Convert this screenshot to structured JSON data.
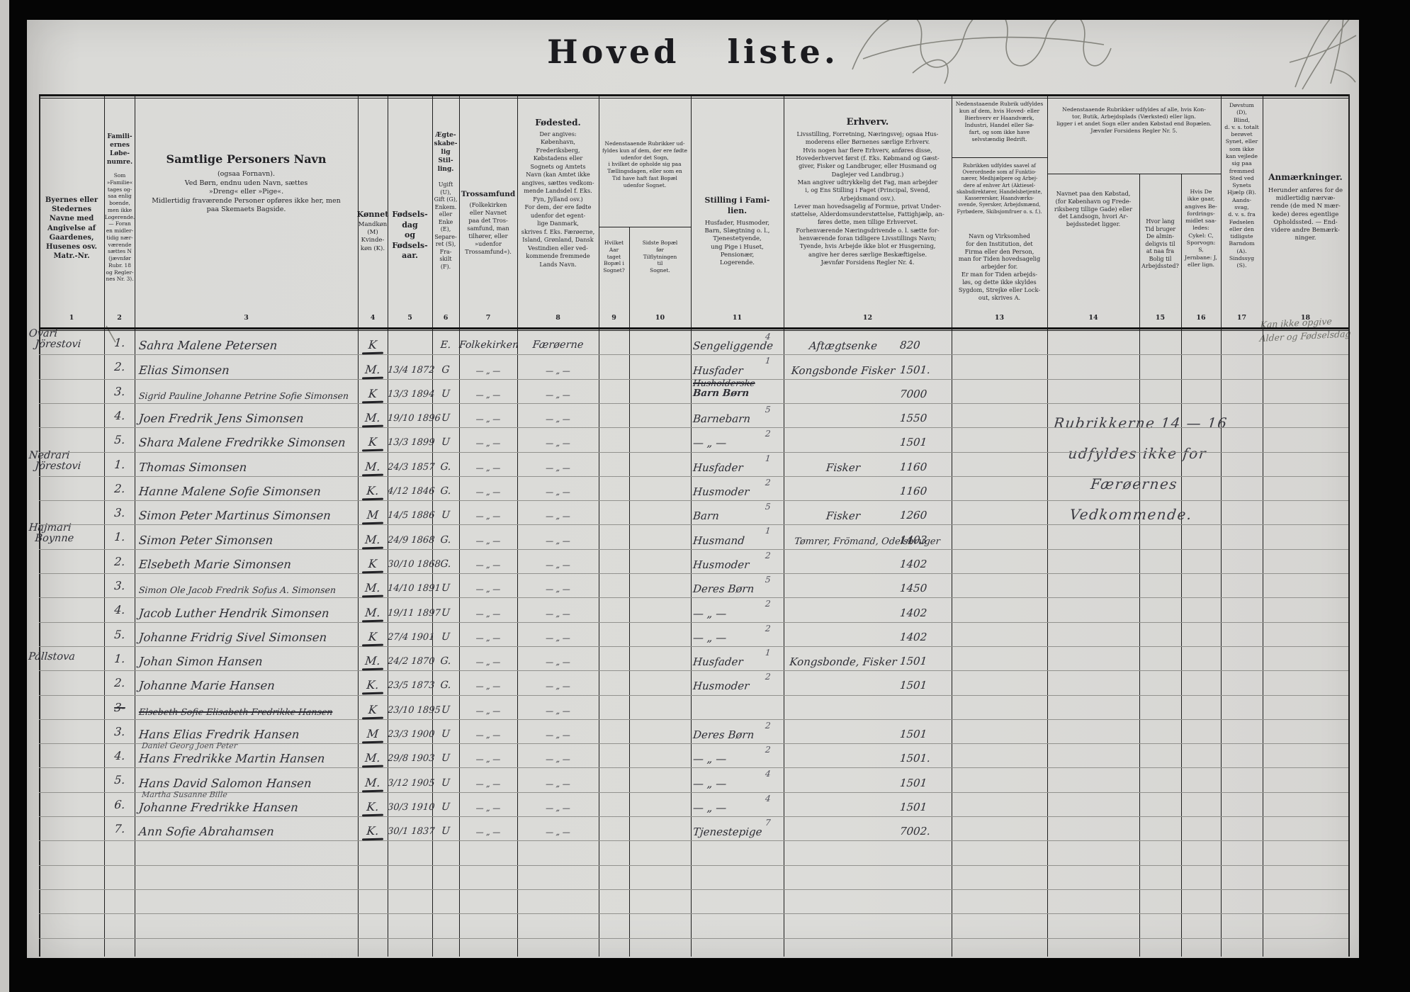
{
  "title": "Hoved   liste.",
  "colors": {
    "ink": "#33333a",
    "pencil": "#6e6e68",
    "paper": "#d9d8d4"
  },
  "column_numbers": [
    "1",
    "2",
    "3",
    "4",
    "5",
    "6",
    "7",
    "8",
    "9",
    "10",
    "11",
    "12",
    "13",
    "14",
    "15",
    "16",
    "17",
    "18"
  ],
  "header": {
    "c1": "Byernes eller\nStedernes\nNavne med\nAngivelse af\nGaardenes,\nHusenes osv.\nMatr.-Nr.",
    "c2_head": "Famili-\nernes\nLøbe-\nnumre.",
    "c2_sub": "Som\n»Familie«\ntages og-\nsaa enlig\nboende,\nmen ikke\nLogerende.\n— Foran\nen midler-\ntidig nær-\nværende\nsættes N\n(jævnfør\nRubr. 18\nog Regler-\nnes Nr. 3).",
    "c3_head": "Samtlige Personers Navn",
    "c3_sub": "(ogsaa Fornavn).\nVed Børn, endnu uden Navn, sættes\n»Dreng« eller »Pige«.\nMidlertidig fraværende Personer opføres ikke her, men\npaa Skemaets Bagside.",
    "c4_head": "Kønnet",
    "c4_sub": "Mandkøn\n(M)\nKvinde-\nkøn (K).",
    "c5_head": "Fødsels-\ndag\nog\nFødsels-\naar.",
    "c6_head": "Ægte-\nskabe-\nlig\nStil-\nling.",
    "c6_sub": "Ugift\n(U),\nGift (G),\nEnkem.\neller\nEnke\n(E),\nSepare-\nret (S),\nFra-\nskilt\n(F).",
    "c7_head": "Trossamfund",
    "c7_sub": "(Folkekirken\neller Navnet\npaa det Tros-\nsamfund, man\ntilhører, eller\n»udenfor\nTrossamfund«).",
    "c8_head": "Fødested.",
    "c8_sub": "Der angives:\nKøbenhavn,\nFrederiksberg,\nKøbstadens eller\nSognets og Amtets\nNavn (kan Amtet ikke\nangives, sættes vedkom-\nmende Landsdel f. Eks.\nFyn, Jylland osv.)\nFor dem, der ere fødte\nudenfor det egent-\nlige Danmark,\nskrives f. Eks. Færøerne,\nIsland, Grønland, Dansk\nVestindien eller ved-\nkommende fremmede\nLands Navn.",
    "c9_10_shared": "Nedenstaaende Rubrikker ud-\nfyldes kun af dem, der ere fødte\nudenfor det Sogn,\ni hvilket de opholde sig paa\nTællingsdagen, eller som en\nTid have haft fast Bopæl\nudenfor Sognet.",
    "c9_sub": "Hvilket\nAar\ntaget\nBopæl i\nSognet?",
    "c10_sub": "Sidste Bopæl\nfør\nTilflytningen\ntil\nSognet.",
    "c11_head": "Stilling i Fami-\nlien.",
    "c11_sub": "Husfader, Husmoder,\nBarn, Slægtning o. l.,\nTjenestetyende,\nung Pige i Huset,\nPensionær,\nLogerende.",
    "c12_head": "Erhverv.",
    "c12_sub": "Livsstilling, Forretning, Næringsvej; ogsaa Hus-\nmoderens eller Børnenes særlige Erhverv.\nHvis nogen har flere Erhverv, anføres disse,\nHovederhvervet først (f. Eks. Købmand og Gæst-\ngiver, Fisker og Landbruger, eller Husmand og\nDaglejer ved Landbrug.)\nMan angiver udtrykkelig det Fag, man arbejder\ni, og Ens Stilling i Faget (Principal, Svend,\nArbejdsmand osv.).\nLever man hovedsagelig af Formue, privat Under-\nstøttelse, Alderdomsunderstøttelse, Fattighjælp, an-\nføres dette, men tillige Erhvervet.\nForhenværende Næringsdrivende o. l. sætte for-\nhenværende foran tidligere Livsstillings Navn;\nTyende, hvis Arbejde ikke blot er Husgerning,\nangive her deres særlige Beskæftigelse.\nJævnfør Forsidens Regler Nr. 4.",
    "c13_top": "Nedenstaaende Rubrik udfyldes\nkun af dem, hvis Hoved- eller\nBierhverv er Haandværk,\nIndustri, Handel eller Sø-\nfart, og som ikke have\nselvstændig Bedrift.",
    "c13_mid": "Rubrikken udfyldes saavel af\nOverordnede som af Funktio-\nnærer, Medhjælpere og Arbej-\ndere af enhver Art (Aktiesel-\nskabsdirektører, Handelsbetjente,\nKasserersker, Haandværks-\nsvende, Syersker, Arbejdsmænd,\nFyrbødere, Skibsjomfruer o. s. f.).",
    "c13_bottom": "Navn og Virksomhed\nfor den Institution, det\nFirma eller den Person,\nman for Tiden hovedsagelig\narbejder for.\nEr man for Tiden arbejds-\nløs, og dette ikke skyldes\nSygdom, Strejke eller Lock-\nout, skrives A.",
    "c14_16_shared": "Nedenstaaende Rubrikker udfyldes af alle, hvis Kon-\ntor, Butik, Arbejdsplads (Værksted) eller lign.\nligger i et andet Sogn eller anden Købstad end Bopælen.\nJævnfør Forsidens Regler Nr. 5.",
    "c14_sub": "Navnet paa den Købstad,\n(for København og Frede-\nriksberg tillige Gade) eller\ndet Landsogn, hvori Ar-\nbejdsstedet ligger.",
    "c15_sub": "Hvor lang\nTid bruger\nDe almin-\ndeligvis til\nat naa fra\nBolig til\nArbejdssted?",
    "c16_sub": "Hvis De\nikke gaar,\nangives Be-\nfordrings-\nmidlet saa-\nledes:\nCykel: C,\nSporvogn:\nS,\nJernbane: J,\neller lign.",
    "c17": "Døvstum\n(D),\nBlind,\nd. v. s. totalt\nberøvet\nSynet, eller\nsom ikke\nkan vejlede\nsig paa\nfremmed\nSted ved\nSynets\nHjælp (B).\nAands-\nsvag,\nd. v. s. fra\nFødselen\neller den\ntidligste\nBarndom\n(A).\nSindssyg\n(S).",
    "c18_head": "Anmærkninger.",
    "c18_sub": "Herunder anføres for de\nmidlertidig nærvæ-\nrende (de med N mær-\nkede) deres egentlige\nOpholdssted. — End-\nvidere andre Bemærk-\nninger."
  },
  "notes": {
    "rubrik_note": "Rubrikkerne 14 — 16\nudfyldes ikke for\nFærøernes Vedkommende.",
    "pencil_remark": "Kan ikke opgive\nAlder og Fødselsdag"
  },
  "rows": [
    {
      "place": "Ovari\nJörestovi",
      "no": "1.",
      "name": "Sahra Malene Petersen",
      "sex": "K",
      "date": "",
      "status": "E.",
      "faith": "Folkekirken",
      "born": "Færøerne",
      "fam": "Sengeliggende",
      "mark": "4",
      "trade": "Aftægtsenke",
      "code": "820"
    },
    {
      "no": "2.",
      "name": "Elias Simonsen",
      "sex": "M.",
      "date": "13/4 1872",
      "status": "G",
      "faith": "— „ —",
      "born": "— „ —",
      "fam": "Husfader",
      "mark": "1",
      "trade": "Kongsbonde Fisker",
      "code": "1501."
    },
    {
      "no": "3.",
      "name": "Sigrid Pauline Johanne Petrine Sofie Simonsen",
      "small": true,
      "sex": "K",
      "date": "13/3 1894",
      "status": "U",
      "faith": "— „ —",
      "born": "— „ —",
      "fam": "Husholderske",
      "fam_struck": true,
      "fam2": "Barn Børn",
      "code": "7000"
    },
    {
      "no": "4.",
      "name": "Joen Fredrik Jens Simonsen",
      "sex": "M.",
      "date": "19/10 1896",
      "status": "U",
      "faith": "— „ —",
      "born": "— „ —",
      "fam": "Barnebarn",
      "mark": "5",
      "code": "1550"
    },
    {
      "no": "5.",
      "name": "Shara Malene Fredrikke Simonsen",
      "sex": "K",
      "date": "13/3 1899",
      "status": "U",
      "faith": "— „ —",
      "born": "— „ —",
      "fam": "— „ —",
      "mark": "2",
      "code": "1501"
    },
    {
      "place": "Nedrari\nJörestovi",
      "no": "1.",
      "name": "Thomas Simonsen",
      "sex": "M.",
      "date": "24/3 1857",
      "status": "G.",
      "faith": "— „ —",
      "born": "— „ —",
      "fam": "Husfader",
      "mark": "1",
      "trade": "Fisker",
      "code": "1160"
    },
    {
      "no": "2.",
      "name": "Hanne Malene Sofie Simonsen",
      "sex": "K.",
      "date": "4/12 1846",
      "status": "G.",
      "faith": "— „ —",
      "born": "— „ —",
      "fam": "Husmoder",
      "mark": "2",
      "code": "1160"
    },
    {
      "no": "3.",
      "name": "Simon Peter Martinus Simonsen",
      "sex": "M",
      "date": "14/5 1886",
      "status": "U",
      "faith": "— „ —",
      "born": "— „ —",
      "fam": "Barn",
      "mark": "5",
      "trade": "Fisker",
      "code": "1260"
    },
    {
      "place": "Hajmari\nBoynne",
      "no": "1.",
      "name": "Simon Peter Simonsen",
      "sex": "M.",
      "date": "24/9 1868",
      "status": "G.",
      "faith": "— „ —",
      "born": "— „ —",
      "fam": "Husmand",
      "mark": "1",
      "trade": "Tømrer, Frömand, Odelsbruger",
      "trade_wide": true,
      "code": "1403"
    },
    {
      "no": "2.",
      "name": "Elsebeth Marie Simonsen",
      "sex": "K",
      "date": "30/10 1868",
      "status": "G.",
      "faith": "— „ —",
      "born": "— „ —",
      "fam": "Husmoder",
      "mark": "2",
      "code": "1402"
    },
    {
      "no": "3.",
      "name": "Simon Ole Jacob Fredrik Sofus A. Simonsen",
      "small": true,
      "sex": "M.",
      "date": "14/10 1891",
      "status": "U",
      "faith": "— „ —",
      "born": "— „ —",
      "fam": "Deres Børn",
      "mark": "5",
      "code": "1450"
    },
    {
      "no": "4.",
      "name": "Jacob Luther Hendrik Simonsen",
      "sex": "M.",
      "date": "19/11 1897",
      "status": "U",
      "faith": "— „ —",
      "born": "— „ —",
      "fam": "— „ —",
      "mark": "2",
      "code": "1402"
    },
    {
      "no": "5.",
      "name": "Johanne Fridrig Sivel Simonsen",
      "sex": "K",
      "date": "27/4 1901",
      "status": "U",
      "faith": "— „ —",
      "born": "— „ —",
      "fam": "— „ —",
      "mark": "2",
      "code": "1402"
    },
    {
      "place": "Pállstova",
      "no": "1.",
      "name": "Johan Simon Hansen",
      "sex": "M.",
      "date": "24/2 1870",
      "status": "G.",
      "faith": "— „ —",
      "born": "— „ —",
      "fam": "Husfader",
      "mark": "1",
      "trade": "Kongsbonde, Fisker",
      "code": "1501"
    },
    {
      "no": "2.",
      "name": "Johanne Marie Hansen",
      "sex": "K.",
      "date": "23/5 1873",
      "status": "G.",
      "faith": "— „ —",
      "born": "— „ —",
      "fam": "Husmoder",
      "mark": "2",
      "code": "1501"
    },
    {
      "no": "3-",
      "no_struck": true,
      "name": "Elsebeth Sofie Elisabeth Fredrikke Hansen",
      "name_struck": true,
      "small": true,
      "sex": "K",
      "date": "23/10 1895",
      "status": "U",
      "faith": "— „ —",
      "born": "— „ —"
    },
    {
      "no": "3.",
      "name": "Hans Elias Fredrik Hansen",
      "sex": "M",
      "date": "23/3 1900",
      "status": "U",
      "faith": "— „ —",
      "born": "— „ —",
      "fam": "Deres Børn",
      "mark": "2",
      "code": "1501"
    },
    {
      "no": "4.",
      "name": "Hans Fredrikke Martin Hansen",
      "name_above": "Daniel Georg Joen Peter",
      "sex": "M.",
      "date": "29/8 1903",
      "status": "U",
      "faith": "— „ —",
      "born": "— „ —",
      "fam": "— „ —",
      "mark": "2",
      "code": "1501."
    },
    {
      "no": "5.",
      "name": "Hans David Salomon Hansen",
      "sex": "M.",
      "date": "3/12 1905",
      "status": "U",
      "faith": "— „ —",
      "born": "— „ —",
      "fam": "— „ —",
      "mark": "4",
      "code": "1501"
    },
    {
      "no": "6.",
      "name": "Johanne Fredrikke Hansen",
      "name_above": "Martha Susanne Bille",
      "sex": "K.",
      "date": "30/3 1910",
      "status": "U",
      "faith": "— „ —",
      "born": "— „ —",
      "fam": "— „ —",
      "mark": "4",
      "code": "1501"
    },
    {
      "no": "7.",
      "name": "Ann Sofie Abrahamsen",
      "sex": "K.",
      "date": "30/1 1837",
      "status": "U",
      "faith": "— „ —",
      "born": "— „ —",
      "fam": "Tjenestepige",
      "mark": "7",
      "code": "7002."
    }
  ]
}
